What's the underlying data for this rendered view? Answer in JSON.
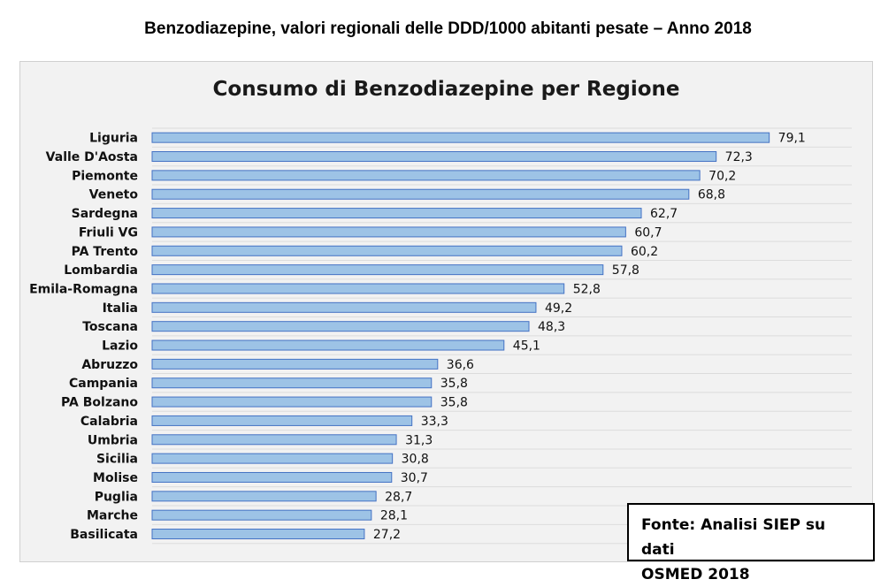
{
  "page_title": "Benzodiazepine, valori regionali delle DDD/1000 abitanti pesate – Anno 2018",
  "source_note": {
    "line1": "Fonte: Analisi SIEP su dati",
    "line2": "OSMED 2018"
  },
  "colors": {
    "bar_fill": "#9dc3e6",
    "bar_stroke": "#4472c4",
    "grid": "#dcdcdc",
    "panel_bg": "#f2f2f2"
  },
  "chart_data": {
    "type": "bar",
    "orientation": "horizontal",
    "title": "Consumo di Benzodiazepine per Regione",
    "xlabel": "",
    "ylabel": "",
    "xlim": [
      0,
      90
    ],
    "grid": true,
    "legend": "none",
    "categories": [
      "Liguria",
      "Valle D'Aosta",
      "Piemonte",
      "Veneto",
      "Sardegna",
      "Friuli VG",
      "PA Trento",
      "Lombardia",
      "Emila-Romagna",
      "Italia",
      "Toscana",
      "Lazio",
      "Abruzzo",
      "Campania",
      "PA Bolzano",
      "Calabria",
      "Umbria",
      "Sicilia",
      "Molise",
      "Puglia",
      "Marche",
      "Basilicata"
    ],
    "values": [
      79.1,
      72.3,
      70.2,
      68.8,
      62.7,
      60.7,
      60.2,
      57.8,
      52.8,
      49.2,
      48.3,
      45.1,
      36.6,
      35.8,
      35.8,
      33.3,
      31.3,
      30.8,
      30.7,
      28.7,
      28.1,
      27.2
    ],
    "value_labels": [
      "79,1",
      "72,3",
      "70,2",
      "68,8",
      "62,7",
      "60,7",
      "60,2",
      "57,8",
      "52,8",
      "49,2",
      "48,3",
      "45,1",
      "36,6",
      "35,8",
      "35,8",
      "33,3",
      "31,3",
      "30,8",
      "30,7",
      "28,7",
      "28,1",
      "27,2"
    ]
  }
}
